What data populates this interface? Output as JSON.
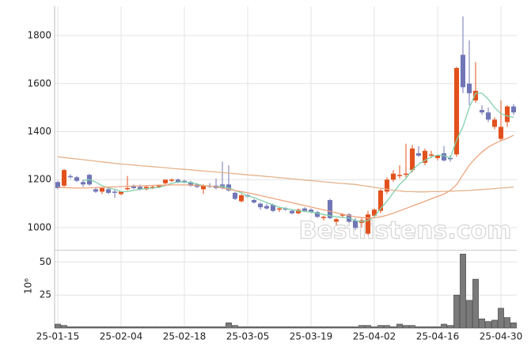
{
  "chart_data": [
    {
      "type": "candlestick",
      "categories": [
        "25-01-15",
        null,
        null,
        null,
        null,
        null,
        null,
        null,
        null,
        null,
        "25-02-04",
        null,
        null,
        null,
        null,
        null,
        null,
        null,
        null,
        null,
        "25-02-18",
        null,
        null,
        null,
        null,
        null,
        null,
        null,
        null,
        null,
        "25-03-05",
        null,
        null,
        null,
        null,
        null,
        null,
        null,
        null,
        null,
        "25-03-19",
        null,
        null,
        null,
        null,
        null,
        null,
        null,
        null,
        null,
        "25-04-02",
        null,
        null,
        null,
        null,
        null,
        null,
        null,
        null,
        null,
        "25-04-16",
        null,
        null,
        null,
        null,
        null,
        null,
        null,
        null,
        null,
        "25-04-30",
        null,
        null
      ],
      "open": [
        1190,
        1175,
        1215,
        1210,
        1190,
        1220,
        1160,
        1150,
        1160,
        1150,
        1140,
        1160,
        1175,
        1170,
        1160,
        1165,
        1170,
        1185,
        1195,
        1200,
        1195,
        1190,
        1180,
        1160,
        1175,
        1175,
        1180,
        1180,
        1145,
        1110,
        1135,
        1115,
        1100,
        1090,
        1095,
        1075,
        1080,
        1070,
        1060,
        1080,
        1075,
        1065,
        1040,
        1115,
        1025,
        1050,
        1055,
        1030,
        1020,
        975,
        1050,
        1070,
        1150,
        1200,
        1215,
        1220,
        1240,
        1310,
        1270,
        1300,
        1290,
        1310,
        1290,
        1305,
        1720,
        1600,
        1530,
        1490,
        1480,
        1420,
        1370,
        1440,
        1505
      ],
      "high": [
        1195,
        1245,
        1222,
        1215,
        1200,
        1225,
        1165,
        1170,
        1170,
        1160,
        1150,
        1215,
        1180,
        1180,
        1175,
        1175,
        1180,
        1200,
        1205,
        1205,
        1200,
        1195,
        1185,
        1180,
        1185,
        1205,
        1275,
        1260,
        1150,
        1140,
        1140,
        1120,
        1105,
        1100,
        1100,
        1085,
        1085,
        1075,
        1080,
        1085,
        1080,
        1070,
        1050,
        1120,
        1040,
        1060,
        1060,
        1040,
        1040,
        1070,
        1080,
        1160,
        1210,
        1240,
        1260,
        1350,
        1345,
        1340,
        1330,
        1320,
        1305,
        1340,
        1300,
        1670,
        1880,
        1780,
        1690,
        1510,
        1500,
        1460,
        1530,
        1510,
        1515
      ],
      "low": [
        1160,
        1170,
        1205,
        1190,
        1170,
        1175,
        1145,
        1140,
        1140,
        1125,
        1135,
        1155,
        1160,
        1155,
        1155,
        1160,
        1165,
        1180,
        1190,
        1185,
        1185,
        1170,
        1165,
        1140,
        1165,
        1160,
        1160,
        1150,
        1115,
        1105,
        1125,
        1100,
        1075,
        1075,
        1065,
        1065,
        1070,
        1055,
        1055,
        1065,
        1060,
        1040,
        1030,
        1035,
        1010,
        1040,
        1020,
        990,
        1000,
        970,
        1040,
        1060,
        1140,
        1190,
        1205,
        1210,
        1230,
        1295,
        1260,
        1290,
        1280,
        1275,
        1275,
        1295,
        1560,
        1510,
        1520,
        1470,
        1440,
        1410,
        1360,
        1420,
        1470
      ],
      "close": [
        1165,
        1240,
        1210,
        1195,
        1180,
        1180,
        1150,
        1165,
        1145,
        1145,
        1150,
        1165,
        1165,
        1160,
        1170,
        1170,
        1175,
        1200,
        1200,
        1190,
        1190,
        1175,
        1170,
        1175,
        1170,
        1165,
        1165,
        1155,
        1120,
        1135,
        1130,
        1105,
        1085,
        1080,
        1070,
        1080,
        1075,
        1060,
        1075,
        1070,
        1065,
        1045,
        1045,
        1040,
        1035,
        1055,
        1025,
        1000,
        1030,
        1055,
        1075,
        1155,
        1200,
        1225,
        1220,
        1225,
        1330,
        1300,
        1320,
        1305,
        1300,
        1280,
        1285,
        1665,
        1585,
        1560,
        1570,
        1480,
        1450,
        1450,
        1420,
        1505,
        1480
      ],
      "up_color": "#e2511d",
      "down_color": "#7076b6",
      "series": [
        {
          "color": "#82d1ac",
          "values": [
            null,
            null,
            null,
            null,
            1195,
            1200,
            1190,
            1175,
            1165,
            1160,
            1150,
            1150,
            1155,
            1160,
            1163,
            1165,
            1168,
            1175,
            1185,
            1190,
            1190,
            1188,
            1182,
            1175,
            1172,
            1170,
            1172,
            1165,
            1155,
            1145,
            1132,
            1125,
            1115,
            1105,
            1095,
            1085,
            1080,
            1075,
            1070,
            1068,
            1065,
            1060,
            1055,
            1050,
            1045,
            1043,
            1040,
            1030,
            1025,
            1030,
            1045,
            1080,
            1110,
            1145,
            1180,
            1205,
            1240,
            1265,
            1280,
            1295,
            1302,
            1300,
            1290,
            1365,
            1420,
            1500,
            1560,
            1560,
            1535,
            1500,
            1475,
            1465,
            1460
          ]
        },
        {
          "color": "#eca47e",
          "values": [
            1168,
            1167,
            1166,
            1165,
            1165,
            1166,
            1167,
            1168,
            1169,
            1170,
            1171,
            1172,
            1173,
            1174,
            1175,
            1176,
            1177,
            1177,
            1178,
            1178,
            1178,
            1177,
            1176,
            1175,
            1173,
            1170,
            1165,
            1160,
            1155,
            1150,
            1145,
            1140,
            1134,
            1128,
            1122,
            1116,
            1110,
            1104,
            1098,
            1092,
            1086,
            1080,
            1074,
            1068,
            1062,
            1056,
            1050,
            1045,
            1042,
            1040,
            1041,
            1045,
            1052,
            1060,
            1070,
            1080,
            1090,
            1100,
            1110,
            1120,
            1130,
            1140,
            1155,
            1180,
            1220,
            1260,
            1290,
            1315,
            1335,
            1350,
            1362,
            1372,
            1385
          ]
        },
        {
          "color": "#e4b38c",
          "values": [
            1295,
            1292,
            1289,
            1286,
            1283,
            1280,
            1277,
            1274,
            1271,
            1268,
            1265,
            1263,
            1261,
            1258,
            1256,
            1254,
            1252,
            1250,
            1247,
            1245,
            1243,
            1241,
            1238,
            1236,
            1234,
            1232,
            1229,
            1227,
            1225,
            1223,
            1220,
            1218,
            1216,
            1213,
            1211,
            1208,
            1206,
            1203,
            1201,
            1198,
            1196,
            1194,
            1191,
            1189,
            1186,
            1184,
            1182,
            1180,
            1176,
            1172,
            1168,
            1164,
            1160,
            1156,
            1153,
            1150,
            1150,
            1149,
            1149,
            1150,
            1150,
            1151,
            1152,
            1153,
            1154,
            1155,
            1157,
            1159,
            1161,
            1163,
            1165,
            1167,
            1170
          ]
        }
      ],
      "ylim": [
        911,
        1922
      ],
      "yticks": [
        1000,
        1200,
        1400,
        1600,
        1800
      ],
      "grid": true,
      "watermark": "Bestlistens.com"
    },
    {
      "type": "bar",
      "values": [
        3,
        2,
        1,
        1,
        1,
        1,
        1,
        1,
        1,
        1,
        1,
        1,
        1,
        1,
        1,
        1,
        1,
        1,
        1,
        1,
        1,
        1,
        1,
        1,
        1,
        1,
        1,
        4,
        2,
        1,
        1,
        1,
        1,
        1,
        1,
        1,
        1,
        1,
        1,
        1,
        1,
        1,
        1,
        1,
        1,
        1,
        1,
        1,
        2,
        2,
        1,
        2,
        2,
        1,
        3,
        2,
        2,
        1,
        1,
        1,
        1,
        3,
        2,
        25,
        56,
        21,
        37,
        7,
        5,
        6,
        15,
        8,
        4
      ],
      "color": "#7a7a7a",
      "ylim": [
        0,
        58
      ],
      "yticks": [
        25,
        50
      ],
      "ylabel": "10⁶",
      "grid": true
    }
  ]
}
